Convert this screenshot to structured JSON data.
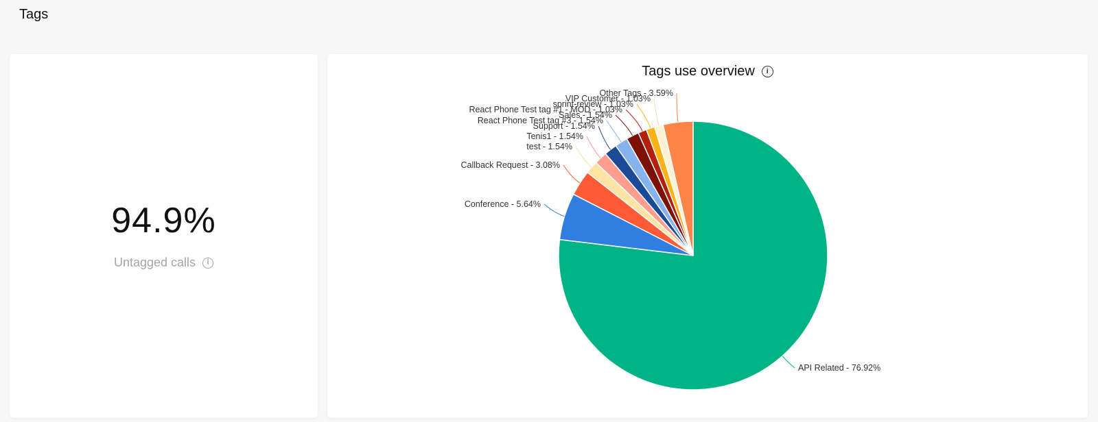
{
  "page": {
    "title": "Tags"
  },
  "stat_card": {
    "value": "94.9%",
    "label": "Untagged calls",
    "info_icon": "info-icon"
  },
  "chart_card": {
    "title": "Tags use overview",
    "info_icon": "info-icon"
  },
  "chart_data": {
    "type": "pie",
    "title": "Tags use overview",
    "slices": [
      {
        "name": "API Related",
        "value": 76.92,
        "label": "API Related - 76.92%",
        "color": "#00b386"
      },
      {
        "name": "Conference",
        "value": 5.64,
        "label": "Conference - 5.64%",
        "color": "#2f7ee0"
      },
      {
        "name": "Callback Request",
        "value": 3.08,
        "label": "Callback Request - 3.08%",
        "color": "#ff5a36"
      },
      {
        "name": "test",
        "value": 1.54,
        "label": "test - 1.54%",
        "color": "#fde3a4"
      },
      {
        "name": "Tenis1",
        "value": 1.54,
        "label": "Tenis1 - 1.54%",
        "color": "#ff9e8f"
      },
      {
        "name": "Support",
        "value": 1.54,
        "label": "Support - 1.54%",
        "color": "#1b4a96"
      },
      {
        "name": "React Phone Test tag #3",
        "value": 1.54,
        "label": "React Phone Test tag #3 - 1.54%",
        "color": "#86b3f0"
      },
      {
        "name": "Sales",
        "value": 1.54,
        "label": "Sales - 1.54%",
        "color": "#7c1207"
      },
      {
        "name": "React Phone Test tag #1 - MOD",
        "value": 1.03,
        "label": "React Phone Test tag #1 - MOD - 1.03%",
        "color": "#b3200f"
      },
      {
        "name": "sprint-review",
        "value": 1.03,
        "label": "sprint-review - 1.03%",
        "color": "#f8b417"
      },
      {
        "name": "VIP Customer",
        "value": 1.03,
        "label": "VIP Customer - 1.03%",
        "color": "#fdf2d2"
      },
      {
        "name": "Other Tags",
        "value": 3.59,
        "label": "Other Tags - 3.59%",
        "color": "#ff8447"
      }
    ]
  }
}
